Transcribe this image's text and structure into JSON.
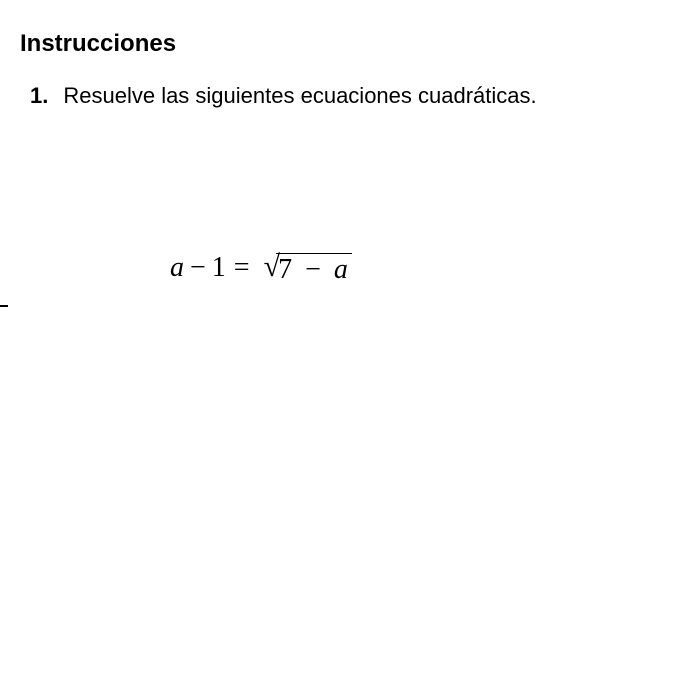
{
  "heading": "Instrucciones",
  "listNumber": "1.",
  "listText": "Resuelve las siguientes ecuaciones cuadráticas.",
  "equation": {
    "leftVar": "a",
    "leftMinus": "−",
    "leftNum": "1",
    "equals": "=",
    "sqrtSymbol": "√",
    "rightNum": "7",
    "rightMinus": "−",
    "rightVar": "a"
  },
  "colors": {
    "background": "#ffffff",
    "text": "#000000"
  },
  "typography": {
    "headingSize": 24,
    "bodySize": 22,
    "equationSize": 28,
    "headingWeight": "bold"
  }
}
